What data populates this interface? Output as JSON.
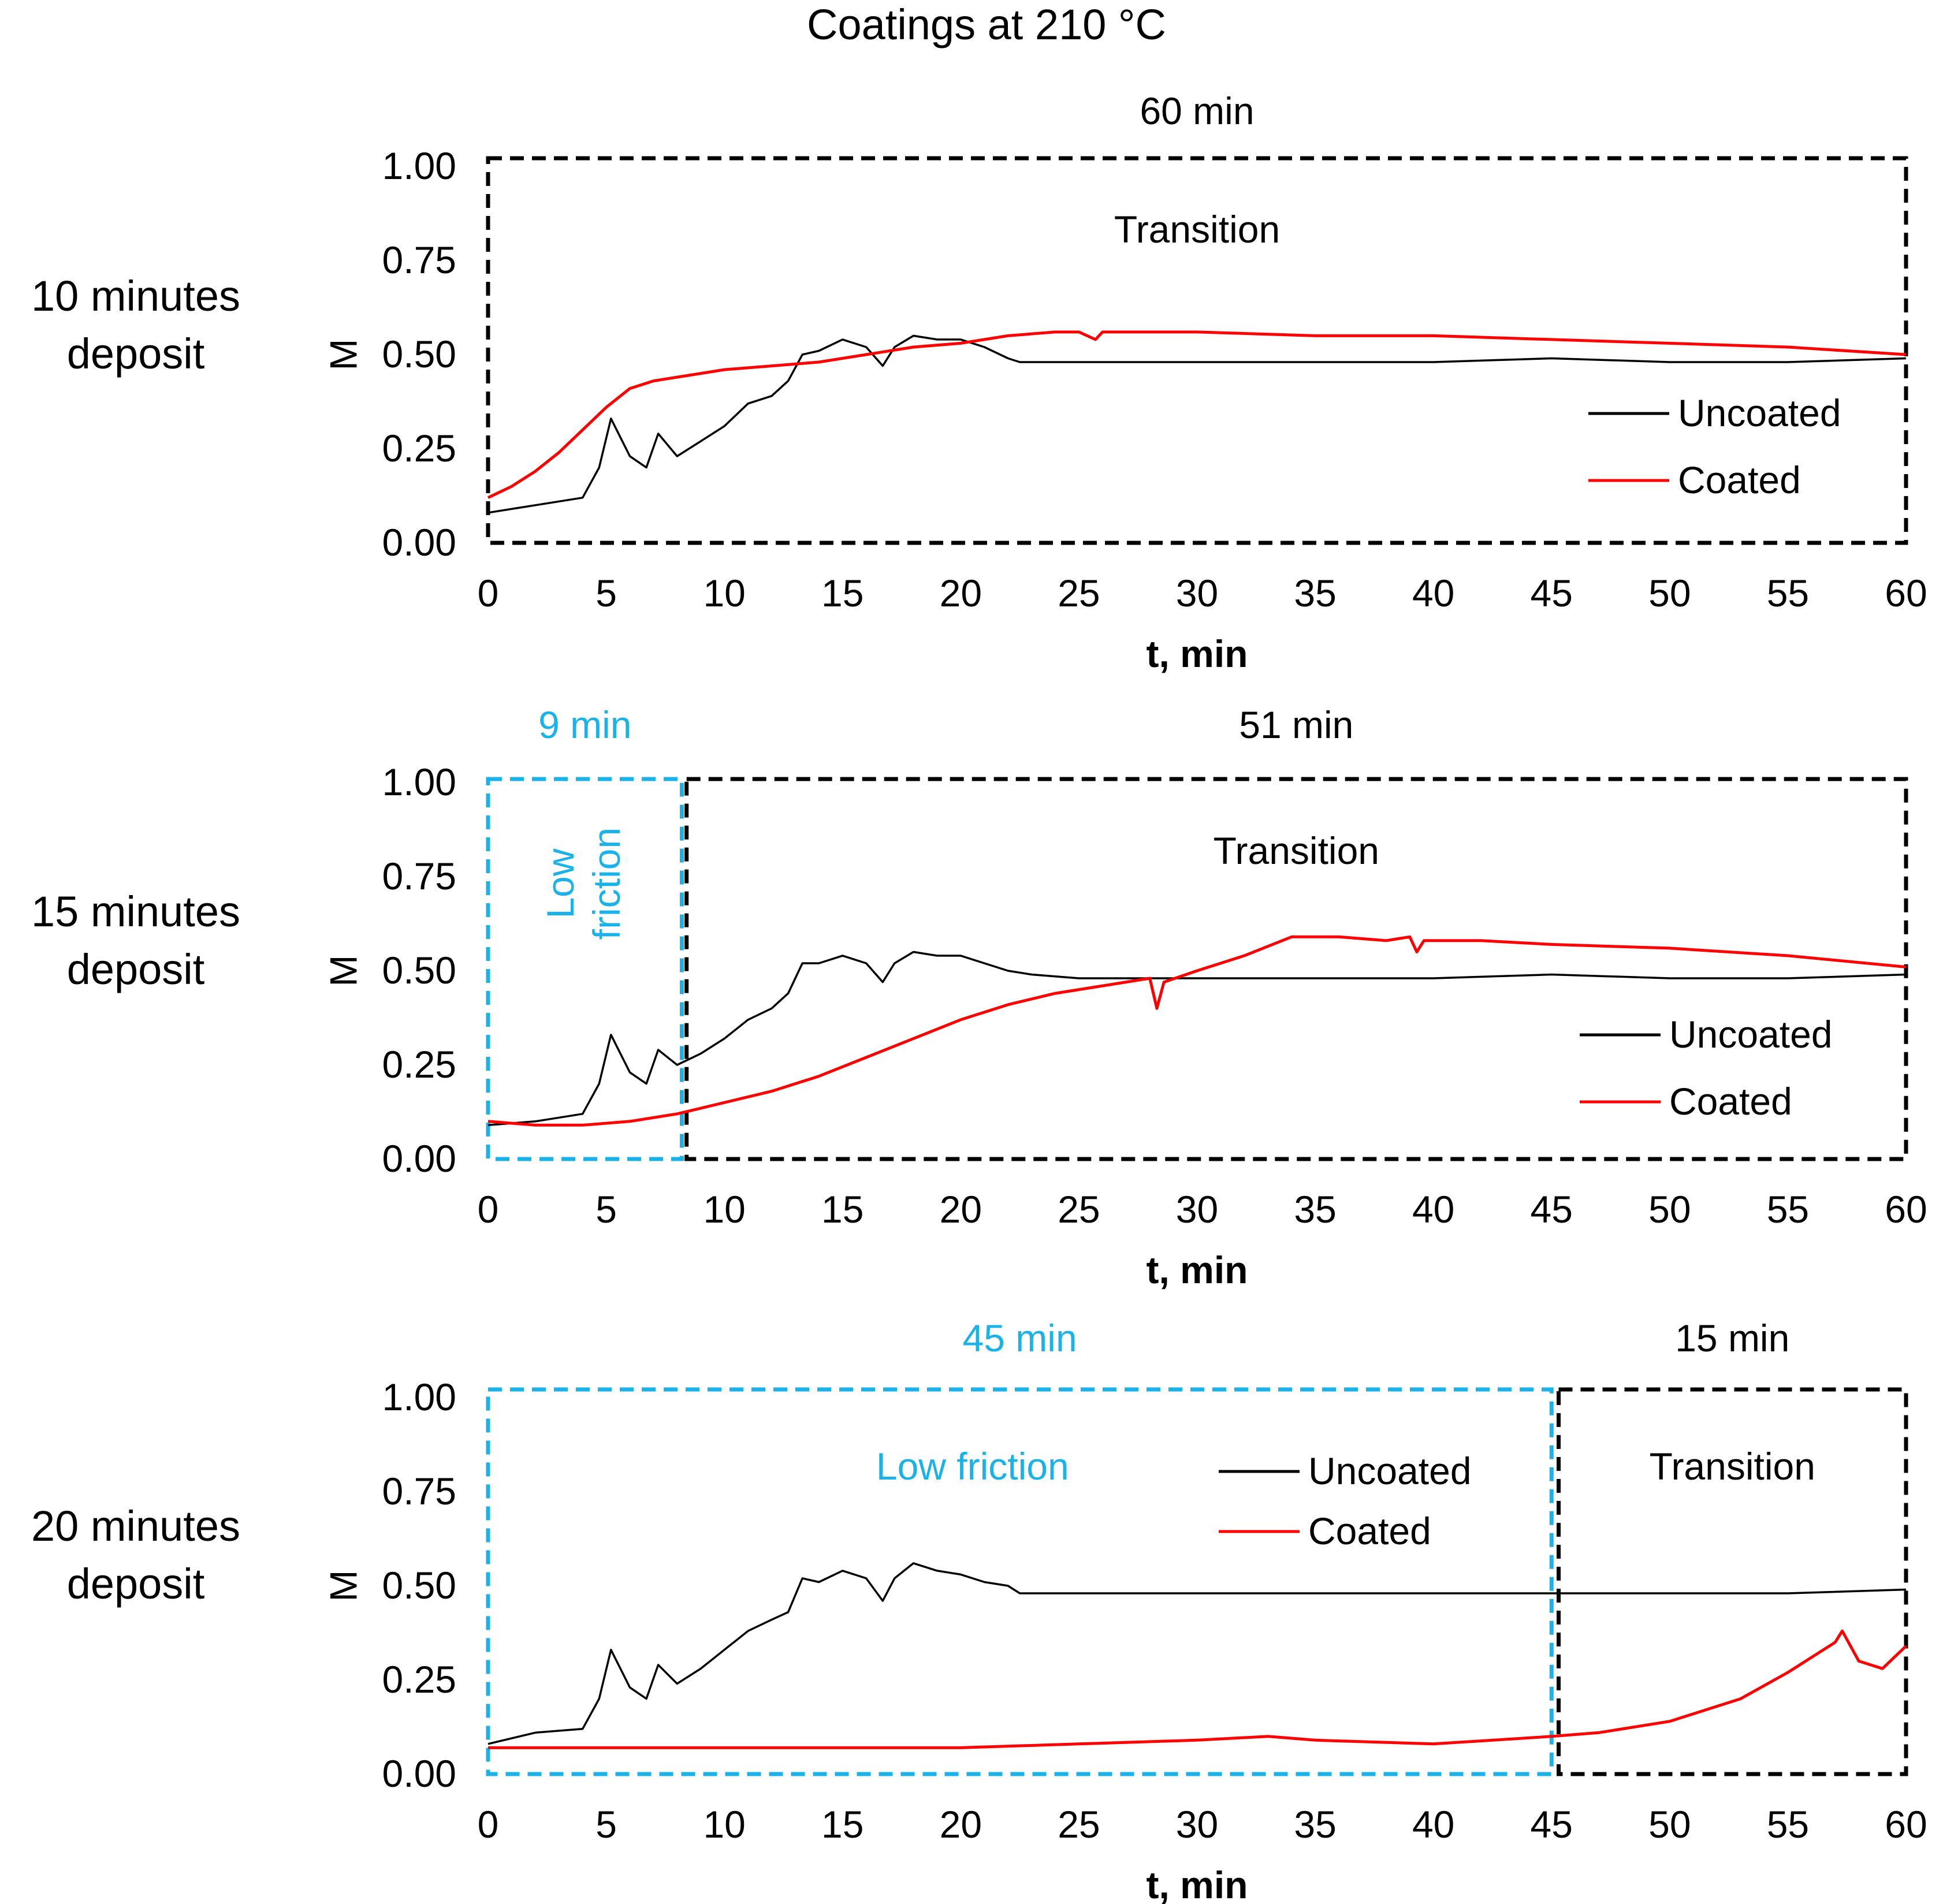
{
  "figure": {
    "title": "Coatings at 210 °C",
    "axis_title_x": "t, min",
    "axis_title_y": "M",
    "colors": {
      "uncoated": "#000000",
      "coated": "#ff0000",
      "low_friction": "#1ab2e8",
      "transition": "#000000"
    }
  },
  "chart_data": [
    {
      "type": "line",
      "row_label": [
        "10 minutes",
        "deposit"
      ],
      "xlabel": "t, min",
      "ylabel": "M",
      "xlim": [
        0,
        60
      ],
      "ylim": [
        0,
        1
      ],
      "xticks": [
        "0",
        "5",
        "10",
        "15",
        "20",
        "25",
        "30",
        "35",
        "40",
        "45",
        "50",
        "55",
        "60"
      ],
      "yticks": [
        "0.00",
        "0.25",
        "0.50",
        "0.75",
        "1.00"
      ],
      "legend": {
        "position": "bottom-right",
        "entries": [
          "Uncoated",
          "Coated"
        ]
      },
      "regions": [
        {
          "kind": "transition",
          "label": "Transition",
          "duration_label": "60 min",
          "x_range": [
            0,
            60
          ]
        }
      ],
      "series": [
        {
          "name": "Uncoated",
          "color": "#000000",
          "points": [
            [
              0,
              0.08
            ],
            [
              2,
              0.1
            ],
            [
              4,
              0.12
            ],
            [
              4.7,
              0.2
            ],
            [
              5.2,
              0.33
            ],
            [
              6,
              0.23
            ],
            [
              6.7,
              0.2
            ],
            [
              7.2,
              0.29
            ],
            [
              8,
              0.23
            ],
            [
              9,
              0.27
            ],
            [
              10,
              0.31
            ],
            [
              11,
              0.37
            ],
            [
              12,
              0.39
            ],
            [
              12.7,
              0.43
            ],
            [
              13.3,
              0.5
            ],
            [
              14,
              0.51
            ],
            [
              15,
              0.54
            ],
            [
              16,
              0.52
            ],
            [
              16.7,
              0.47
            ],
            [
              17.2,
              0.52
            ],
            [
              18,
              0.55
            ],
            [
              19,
              0.54
            ],
            [
              20,
              0.54
            ],
            [
              21,
              0.52
            ],
            [
              22,
              0.49
            ],
            [
              22.5,
              0.48
            ],
            [
              25,
              0.48
            ],
            [
              30,
              0.48
            ],
            [
              35,
              0.48
            ],
            [
              40,
              0.48
            ],
            [
              45,
              0.49
            ],
            [
              50,
              0.48
            ],
            [
              55,
              0.48
            ],
            [
              60,
              0.49
            ]
          ]
        },
        {
          "name": "Coated",
          "color": "#ff0000",
          "points": [
            [
              0,
              0.12
            ],
            [
              1,
              0.15
            ],
            [
              2,
              0.19
            ],
            [
              3,
              0.24
            ],
            [
              4,
              0.3
            ],
            [
              5,
              0.36
            ],
            [
              6,
              0.41
            ],
            [
              7,
              0.43
            ],
            [
              8,
              0.44
            ],
            [
              10,
              0.46
            ],
            [
              12,
              0.47
            ],
            [
              14,
              0.48
            ],
            [
              16,
              0.5
            ],
            [
              18,
              0.52
            ],
            [
              20,
              0.53
            ],
            [
              22,
              0.55
            ],
            [
              24,
              0.56
            ],
            [
              25,
              0.56
            ],
            [
              25.7,
              0.54
            ],
            [
              26,
              0.56
            ],
            [
              30,
              0.56
            ],
            [
              35,
              0.55
            ],
            [
              40,
              0.55
            ],
            [
              45,
              0.54
            ],
            [
              50,
              0.53
            ],
            [
              55,
              0.52
            ],
            [
              60,
              0.5
            ]
          ]
        }
      ]
    },
    {
      "type": "line",
      "row_label": [
        "15 minutes",
        "deposit"
      ],
      "xlabel": "t, min",
      "ylabel": "M",
      "xlim": [
        0,
        60
      ],
      "ylim": [
        0,
        1
      ],
      "xticks": [
        "0",
        "5",
        "10",
        "15",
        "20",
        "25",
        "30",
        "35",
        "40",
        "45",
        "50",
        "55",
        "60"
      ],
      "yticks": [
        "0.00",
        "0.25",
        "0.50",
        "0.75",
        "1.00"
      ],
      "legend": {
        "position": "bottom-right",
        "entries": [
          "Uncoated",
          "Coated"
        ]
      },
      "regions": [
        {
          "kind": "low_friction",
          "label": "Low friction",
          "label_lines": [
            "Low",
            "friction"
          ],
          "duration_label": "9 min",
          "x_range": [
            0,
            8.2
          ]
        },
        {
          "kind": "transition",
          "label": "Transition",
          "duration_label": "51 min",
          "x_range": [
            8.4,
            60
          ]
        }
      ],
      "series": [
        {
          "name": "Uncoated",
          "color": "#000000",
          "points": [
            [
              0,
              0.09
            ],
            [
              2,
              0.1
            ],
            [
              4,
              0.12
            ],
            [
              4.7,
              0.2
            ],
            [
              5.2,
              0.33
            ],
            [
              6,
              0.23
            ],
            [
              6.7,
              0.2
            ],
            [
              7.2,
              0.29
            ],
            [
              8,
              0.25
            ],
            [
              9,
              0.28
            ],
            [
              10,
              0.32
            ],
            [
              11,
              0.37
            ],
            [
              12,
              0.4
            ],
            [
              12.7,
              0.44
            ],
            [
              13.3,
              0.52
            ],
            [
              14,
              0.52
            ],
            [
              15,
              0.54
            ],
            [
              16,
              0.52
            ],
            [
              16.7,
              0.47
            ],
            [
              17.2,
              0.52
            ],
            [
              18,
              0.55
            ],
            [
              19,
              0.54
            ],
            [
              20,
              0.54
            ],
            [
              21,
              0.52
            ],
            [
              22,
              0.5
            ],
            [
              23,
              0.49
            ],
            [
              25,
              0.48
            ],
            [
              30,
              0.48
            ],
            [
              35,
              0.48
            ],
            [
              40,
              0.48
            ],
            [
              45,
              0.49
            ],
            [
              50,
              0.48
            ],
            [
              55,
              0.48
            ],
            [
              60,
              0.49
            ]
          ]
        },
        {
          "name": "Coated",
          "color": "#ff0000",
          "points": [
            [
              0,
              0.1
            ],
            [
              2,
              0.09
            ],
            [
              4,
              0.09
            ],
            [
              6,
              0.1
            ],
            [
              8,
              0.12
            ],
            [
              10,
              0.15
            ],
            [
              12,
              0.18
            ],
            [
              14,
              0.22
            ],
            [
              16,
              0.27
            ],
            [
              18,
              0.32
            ],
            [
              20,
              0.37
            ],
            [
              22,
              0.41
            ],
            [
              24,
              0.44
            ],
            [
              26,
              0.46
            ],
            [
              28,
              0.48
            ],
            [
              28.3,
              0.4
            ],
            [
              28.6,
              0.47
            ],
            [
              30,
              0.5
            ],
            [
              32,
              0.54
            ],
            [
              34,
              0.59
            ],
            [
              36,
              0.59
            ],
            [
              38,
              0.58
            ],
            [
              39,
              0.59
            ],
            [
              39.3,
              0.55
            ],
            [
              39.6,
              0.58
            ],
            [
              42,
              0.58
            ],
            [
              45,
              0.57
            ],
            [
              50,
              0.56
            ],
            [
              55,
              0.54
            ],
            [
              60,
              0.51
            ]
          ]
        }
      ]
    },
    {
      "type": "line",
      "row_label": [
        "20 minutes",
        "deposit"
      ],
      "xlabel": "t, min",
      "ylabel": "M",
      "xlim": [
        0,
        60
      ],
      "ylim": [
        0,
        1
      ],
      "xticks": [
        "0",
        "5",
        "10",
        "15",
        "20",
        "25",
        "30",
        "35",
        "40",
        "45",
        "50",
        "55",
        "60"
      ],
      "yticks": [
        "0.00",
        "0.25",
        "0.50",
        "0.75",
        "1.00"
      ],
      "legend": {
        "position": "top-center",
        "entries": [
          "Uncoated",
          "Coated"
        ]
      },
      "regions": [
        {
          "kind": "low_friction",
          "label": "Low friction",
          "duration_label": "45 min",
          "x_range": [
            0,
            45
          ]
        },
        {
          "kind": "transition",
          "label": "Transition",
          "duration_label": "15 min",
          "x_range": [
            45.3,
            60
          ]
        }
      ],
      "series": [
        {
          "name": "Uncoated",
          "color": "#000000",
          "points": [
            [
              0,
              0.08
            ],
            [
              2,
              0.11
            ],
            [
              4,
              0.12
            ],
            [
              4.7,
              0.2
            ],
            [
              5.2,
              0.33
            ],
            [
              6,
              0.23
            ],
            [
              6.7,
              0.2
            ],
            [
              7.2,
              0.29
            ],
            [
              8,
              0.24
            ],
            [
              9,
              0.28
            ],
            [
              10,
              0.33
            ],
            [
              11,
              0.38
            ],
            [
              12,
              0.41
            ],
            [
              12.7,
              0.43
            ],
            [
              13.3,
              0.52
            ],
            [
              14,
              0.51
            ],
            [
              15,
              0.54
            ],
            [
              16,
              0.52
            ],
            [
              16.7,
              0.46
            ],
            [
              17.2,
              0.52
            ],
            [
              18,
              0.56
            ],
            [
              19,
              0.54
            ],
            [
              20,
              0.53
            ],
            [
              21,
              0.51
            ],
            [
              22,
              0.5
            ],
            [
              22.5,
              0.48
            ],
            [
              25,
              0.48
            ],
            [
              30,
              0.48
            ],
            [
              35,
              0.48
            ],
            [
              40,
              0.48
            ],
            [
              45,
              0.48
            ],
            [
              50,
              0.48
            ],
            [
              55,
              0.48
            ],
            [
              60,
              0.49
            ]
          ]
        },
        {
          "name": "Coated",
          "color": "#ff0000",
          "points": [
            [
              0,
              0.07
            ],
            [
              5,
              0.07
            ],
            [
              10,
              0.07
            ],
            [
              15,
              0.07
            ],
            [
              20,
              0.07
            ],
            [
              25,
              0.08
            ],
            [
              30,
              0.09
            ],
            [
              33,
              0.1
            ],
            [
              35,
              0.09
            ],
            [
              40,
              0.08
            ],
            [
              45,
              0.1
            ],
            [
              47,
              0.11
            ],
            [
              50,
              0.14
            ],
            [
              53,
              0.2
            ],
            [
              55,
              0.27
            ],
            [
              57,
              0.35
            ],
            [
              57.3,
              0.38
            ],
            [
              58,
              0.3
            ],
            [
              59,
              0.28
            ],
            [
              60,
              0.34
            ]
          ]
        }
      ]
    }
  ]
}
